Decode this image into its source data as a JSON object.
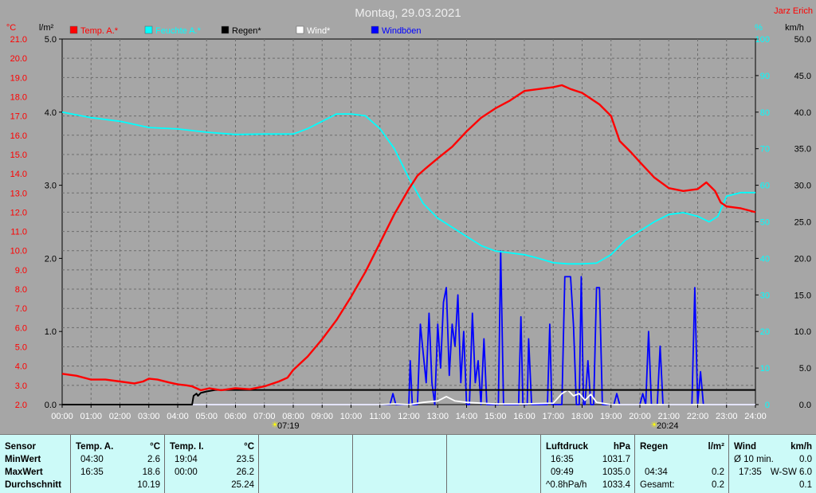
{
  "header": {
    "date_title": "Montag, 29.03.2021",
    "author": "Jarz Erich"
  },
  "axis_units": {
    "temp": "°C",
    "rain": "l/m²",
    "humidity": "%",
    "wind": "km/h"
  },
  "legend": [
    {
      "label": "Temp. A.*",
      "color": "#ff0000"
    },
    {
      "label": "Feuchte A.*",
      "color": "#00ffff"
    },
    {
      "label": "Regen*",
      "color": "#000000"
    },
    {
      "label": "Wind*",
      "color": "#ffffff"
    },
    {
      "label": "Windböen",
      "color": "#0000ff"
    }
  ],
  "sun": {
    "sunrise": "07:19",
    "sunset": "20:24"
  },
  "chart_data": {
    "type": "line",
    "title": "Montag, 29.03.2021",
    "x_range_hours": [
      0,
      24
    ],
    "x_ticks": [
      "00:00",
      "01:00",
      "02:00",
      "03:00",
      "04:00",
      "05:00",
      "06:00",
      "07:00",
      "08:00",
      "09:00",
      "10:00",
      "11:00",
      "12:00",
      "13:00",
      "14:00",
      "15:00",
      "16:00",
      "17:00",
      "18:00",
      "19:00",
      "20:00",
      "21:00",
      "22:00",
      "23:00",
      "24:00"
    ],
    "axes": {
      "temp": {
        "unit": "°C",
        "range": [
          2.0,
          21.0
        ],
        "ticks": [
          "2.0",
          "3.0",
          "4.0",
          "5.0",
          "6.0",
          "7.0",
          "8.0",
          "9.0",
          "10.0",
          "11.0",
          "12.0",
          "13.0",
          "14.0",
          "15.0",
          "16.0",
          "17.0",
          "18.0",
          "19.0",
          "20.0",
          "21.0"
        ]
      },
      "rain": {
        "unit": "l/m²",
        "range": [
          0.0,
          5.0
        ],
        "ticks": [
          "0.0",
          "1.0",
          "2.0",
          "3.0",
          "4.0",
          "5.0"
        ]
      },
      "humidity": {
        "unit": "%",
        "range": [
          0,
          100
        ],
        "ticks": [
          "0",
          "10",
          "20",
          "30",
          "40",
          "50",
          "60",
          "70",
          "80",
          "90",
          "100"
        ]
      },
      "wind": {
        "unit": "km/h",
        "range": [
          0.0,
          50.0
        ],
        "ticks": [
          "0.0",
          "5.0",
          "10.0",
          "15.0",
          "20.0",
          "25.0",
          "30.0",
          "35.0",
          "40.0",
          "45.0",
          "50.0"
        ]
      }
    },
    "grid": true,
    "series": [
      {
        "name": "Temp. A.*",
        "axis": "temp",
        "color": "#ff0000",
        "points": [
          [
            0,
            3.6
          ],
          [
            0.5,
            3.5
          ],
          [
            1,
            3.3
          ],
          [
            1.5,
            3.3
          ],
          [
            2,
            3.2
          ],
          [
            2.5,
            3.1
          ],
          [
            2.8,
            3.2
          ],
          [
            3,
            3.35
          ],
          [
            3.3,
            3.3
          ],
          [
            3.7,
            3.15
          ],
          [
            4,
            3.05
          ],
          [
            4.3,
            3.0
          ],
          [
            4.5,
            2.95
          ],
          [
            4.8,
            2.75
          ],
          [
            5.1,
            2.85
          ],
          [
            5.5,
            2.75
          ],
          [
            6,
            2.85
          ],
          [
            6.5,
            2.8
          ],
          [
            7,
            2.95
          ],
          [
            7.5,
            3.2
          ],
          [
            7.8,
            3.4
          ],
          [
            8,
            3.8
          ],
          [
            8.5,
            4.5
          ],
          [
            9,
            5.4
          ],
          [
            9.5,
            6.4
          ],
          [
            10,
            7.6
          ],
          [
            10.5,
            8.9
          ],
          [
            11,
            10.4
          ],
          [
            11.5,
            11.9
          ],
          [
            12,
            13.2
          ],
          [
            12.3,
            13.9
          ],
          [
            12.6,
            14.3
          ],
          [
            13,
            14.8
          ],
          [
            13.5,
            15.4
          ],
          [
            14,
            16.2
          ],
          [
            14.5,
            16.9
          ],
          [
            15,
            17.4
          ],
          [
            15.5,
            17.8
          ],
          [
            16,
            18.3
          ],
          [
            16.5,
            18.4
          ],
          [
            17,
            18.5
          ],
          [
            17.3,
            18.6
          ],
          [
            17.6,
            18.4
          ],
          [
            18,
            18.2
          ],
          [
            18.3,
            17.9
          ],
          [
            18.6,
            17.6
          ],
          [
            19,
            17.0
          ],
          [
            19.3,
            15.7
          ],
          [
            19.7,
            15.1
          ],
          [
            20,
            14.6
          ],
          [
            20.5,
            13.8
          ],
          [
            21,
            13.25
          ],
          [
            21.5,
            13.1
          ],
          [
            22,
            13.2
          ],
          [
            22.3,
            13.55
          ],
          [
            22.6,
            13.1
          ],
          [
            22.8,
            12.5
          ],
          [
            23,
            12.3
          ],
          [
            23.5,
            12.2
          ],
          [
            24,
            12.0
          ]
        ]
      },
      {
        "name": "Feuchte A.*",
        "axis": "humidity",
        "color": "#00ffff",
        "points": [
          [
            0,
            80
          ],
          [
            1,
            78.5
          ],
          [
            2,
            77.5
          ],
          [
            3,
            75.8
          ],
          [
            4,
            75.4
          ],
          [
            5,
            74.5
          ],
          [
            6,
            73.9
          ],
          [
            7,
            74
          ],
          [
            8,
            74
          ],
          [
            8.5,
            75.5
          ],
          [
            9,
            77.5
          ],
          [
            9.5,
            79.5
          ],
          [
            10,
            79.5
          ],
          [
            10.5,
            79
          ],
          [
            11,
            75.5
          ],
          [
            11.5,
            70
          ],
          [
            12,
            62
          ],
          [
            12.5,
            55
          ],
          [
            13,
            51
          ],
          [
            13.5,
            48.5
          ],
          [
            14,
            46
          ],
          [
            14.5,
            43.5
          ],
          [
            15,
            42
          ],
          [
            15.5,
            41.5
          ],
          [
            16,
            41
          ],
          [
            16.5,
            40
          ],
          [
            17,
            38.8
          ],
          [
            17.5,
            38.5
          ],
          [
            18,
            38.5
          ],
          [
            18.5,
            38.7
          ],
          [
            19,
            41
          ],
          [
            19.5,
            45
          ],
          [
            20,
            47.5
          ],
          [
            20.5,
            50
          ],
          [
            21,
            52
          ],
          [
            21.5,
            52.5
          ],
          [
            22,
            51.5
          ],
          [
            22.4,
            50
          ],
          [
            22.7,
            51.5
          ],
          [
            23,
            57
          ],
          [
            23.5,
            58
          ],
          [
            24,
            58
          ]
        ]
      },
      {
        "name": "Regen*",
        "axis": "rain",
        "color": "#000000",
        "points": [
          [
            0,
            0
          ],
          [
            4.5,
            0
          ],
          [
            4.55,
            0.12
          ],
          [
            4.65,
            0.15
          ],
          [
            4.7,
            0.12
          ],
          [
            4.8,
            0.16
          ],
          [
            5,
            0.18
          ],
          [
            5.3,
            0.2
          ],
          [
            24,
            0.2
          ]
        ]
      },
      {
        "name": "Wind*",
        "axis": "wind",
        "color": "#ffffff",
        "points": [
          [
            0,
            0
          ],
          [
            11,
            0
          ],
          [
            11.5,
            0.1
          ],
          [
            12,
            0
          ],
          [
            12.5,
            0.3
          ],
          [
            13,
            0.5
          ],
          [
            13.3,
            1.1
          ],
          [
            13.6,
            0.5
          ],
          [
            14,
            0.3
          ],
          [
            14.5,
            0.2
          ],
          [
            15,
            0.1
          ],
          [
            16,
            0.1
          ],
          [
            17,
            0.2
          ],
          [
            17.3,
            1.5
          ],
          [
            17.5,
            2.0
          ],
          [
            17.7,
            1.2
          ],
          [
            17.9,
            1.5
          ],
          [
            18.1,
            0.6
          ],
          [
            18.3,
            1.4
          ],
          [
            18.5,
            0.3
          ],
          [
            19,
            0
          ],
          [
            24,
            0
          ]
        ]
      },
      {
        "name": "Windböen",
        "axis": "wind",
        "color": "#0000ff",
        "points": [
          [
            0,
            0
          ],
          [
            11.35,
            0
          ],
          [
            11.45,
            1.5
          ],
          [
            11.55,
            0
          ],
          [
            12,
            0
          ],
          [
            12.05,
            6
          ],
          [
            12.12,
            0
          ],
          [
            12.3,
            0
          ],
          [
            12.4,
            11
          ],
          [
            12.5,
            7
          ],
          [
            12.6,
            3
          ],
          [
            12.7,
            12.5
          ],
          [
            12.8,
            3
          ],
          [
            12.9,
            0
          ],
          [
            13.0,
            11
          ],
          [
            13.1,
            5
          ],
          [
            13.2,
            14
          ],
          [
            13.3,
            16
          ],
          [
            13.4,
            4
          ],
          [
            13.5,
            11
          ],
          [
            13.6,
            8
          ],
          [
            13.7,
            15
          ],
          [
            13.8,
            3
          ],
          [
            13.9,
            10
          ],
          [
            14.0,
            0
          ],
          [
            14.1,
            0
          ],
          [
            14.2,
            12.5
          ],
          [
            14.3,
            3
          ],
          [
            14.4,
            6
          ],
          [
            14.5,
            0
          ],
          [
            14.6,
            9
          ],
          [
            14.7,
            0
          ],
          [
            15.0,
            0
          ],
          [
            15.1,
            0
          ],
          [
            15.18,
            21
          ],
          [
            15.28,
            0
          ],
          [
            15.8,
            0
          ],
          [
            15.88,
            12
          ],
          [
            15.95,
            0
          ],
          [
            16.0,
            0
          ],
          [
            16.1,
            0
          ],
          [
            16.15,
            9
          ],
          [
            16.25,
            0
          ],
          [
            16.8,
            0
          ],
          [
            16.88,
            11
          ],
          [
            16.95,
            0
          ],
          [
            17.3,
            0
          ],
          [
            17.4,
            17.5
          ],
          [
            17.6,
            17.5
          ],
          [
            17.7,
            11
          ],
          [
            17.8,
            0
          ],
          [
            17.9,
            0
          ],
          [
            17.97,
            17.5
          ],
          [
            18.05,
            0
          ],
          [
            18.1,
            0
          ],
          [
            18.2,
            6
          ],
          [
            18.3,
            0
          ],
          [
            18.4,
            0
          ],
          [
            18.5,
            16
          ],
          [
            18.6,
            16
          ],
          [
            18.7,
            0
          ],
          [
            19.1,
            0
          ],
          [
            19.2,
            1.5
          ],
          [
            19.3,
            0
          ],
          [
            20.0,
            0
          ],
          [
            20.1,
            1.5
          ],
          [
            20.2,
            0
          ],
          [
            20.3,
            10
          ],
          [
            20.4,
            0
          ],
          [
            20.6,
            0
          ],
          [
            20.7,
            8
          ],
          [
            20.8,
            0
          ],
          [
            21.8,
            0
          ],
          [
            21.9,
            16
          ],
          [
            22.0,
            0
          ],
          [
            22.1,
            4.5
          ],
          [
            22.2,
            0
          ],
          [
            24,
            0
          ]
        ]
      }
    ]
  },
  "stats": {
    "sensor": {
      "label": "Sensor",
      "rows": [
        "MinWert",
        "MaxWert",
        "Durchschnitt"
      ]
    },
    "temp_a": {
      "title": "Temp. A.",
      "unit": "°C",
      "min_time": "04:30",
      "min_val": "2.6",
      "max_time": "16:35",
      "max_val": "18.6",
      "avg": "10.19"
    },
    "temp_i": {
      "title": "Temp. I.",
      "unit": "°C",
      "min_time": "19:04",
      "min_val": "23.5",
      "max_time": "00:00",
      "max_val": "26.2",
      "avg": "25.24"
    },
    "luftdruck": {
      "title": "Luftdruck",
      "unit": "hPa",
      "min_time": "16:35",
      "min_val": "1031.7",
      "max_time": "09:49",
      "max_val": "1035.0",
      "avg_label": "^0.8hPa/h",
      "avg": "1033.4"
    },
    "regen": {
      "title": "Regen",
      "unit": "l/m²",
      "max_time": "04:34",
      "max_val": "0.2",
      "total_label": "Gesamt:",
      "total": "0.2"
    },
    "wind": {
      "title": "Wind",
      "unit": "km/h",
      "min_label": "Ø 10 min.",
      "min_val": "0.0",
      "max_time": "17:35",
      "max_val": "W-SW 6.0",
      "avg": "0.1"
    }
  }
}
